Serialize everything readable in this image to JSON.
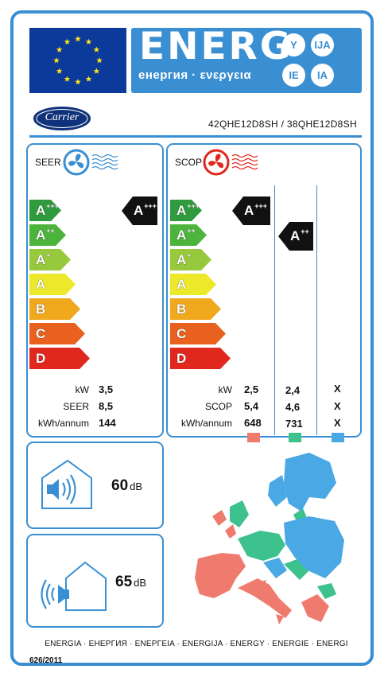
{
  "header": {
    "title": "ENERG",
    "subtitle": "енергия · ενεργεια",
    "language_badges": [
      "Y",
      "IJA",
      "IE",
      "IA"
    ]
  },
  "brand": {
    "logo_text": "Carrier"
  },
  "model": "42QHE12D8SH / 38QHE12D8SH",
  "scale": [
    {
      "letter": "A",
      "sup": "+++",
      "color": "#2f9a3e"
    },
    {
      "letter": "A",
      "sup": "++",
      "color": "#4cb33b"
    },
    {
      "letter": "A",
      "sup": "+",
      "color": "#97c93d"
    },
    {
      "letter": "A",
      "sup": "",
      "color": "#ece82a"
    },
    {
      "letter": "B",
      "sup": "",
      "color": "#f0a81c"
    },
    {
      "letter": "C",
      "sup": "",
      "color": "#e8611f"
    },
    {
      "letter": "D",
      "sup": "",
      "color": "#e0281e"
    }
  ],
  "cooling": {
    "label": "SEER",
    "class_letter": "A",
    "class_sup": "+++",
    "rows": [
      {
        "label": "kW",
        "value": "3,5"
      },
      {
        "label": "SEER",
        "value": "8,5"
      },
      {
        "label": "kWh/annum",
        "value": "144"
      }
    ]
  },
  "heating": {
    "label": "SCOP",
    "warmer_class": {
      "letter": "A",
      "sup": "+++"
    },
    "average_class": {
      "letter": "A",
      "sup": "++"
    },
    "row_labels": [
      "kW",
      "SCOP",
      "kWh/annum"
    ],
    "zones": [
      {
        "color": "#ef7b6e",
        "values": [
          "2,5",
          "5,4",
          "648"
        ]
      },
      {
        "color": "#3dc18d",
        "values": [
          "2,4",
          "4,6",
          "731"
        ]
      },
      {
        "color": "#4aa8e4",
        "values": [
          "X",
          "X",
          "X"
        ]
      }
    ]
  },
  "noise": {
    "indoor": {
      "value": "60",
      "unit": "dB"
    },
    "outdoor": {
      "value": "65",
      "unit": "dB"
    }
  },
  "footer": "ENERGIA · ЕНЕРГИЯ · ΕΝΕΡΓΕΙΑ · ENERGIJA · ENERGY · ENERGIE · ENERGI",
  "regulation": "626/2011"
}
